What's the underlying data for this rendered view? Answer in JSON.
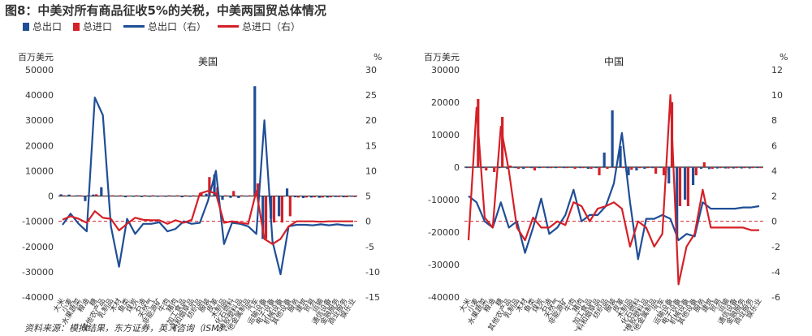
{
  "figure": {
    "title": "图8：中美对所有商品征收5%的关税，中美两国贸总体情况",
    "source": "资料来源：模拟结果，东方证券，英飞咨询（ISM）",
    "legend": [
      {
        "label": "总出口",
        "kind": "bar",
        "color": "#1f4e96"
      },
      {
        "label": "总进口",
        "kind": "bar",
        "color": "#d42027"
      },
      {
        "label": "总出口（右）",
        "kind": "line",
        "color": "#1f4e96"
      },
      {
        "label": "总进口（右）",
        "kind": "line",
        "color": "#d42027"
      }
    ]
  },
  "chart_data": [
    {
      "type": "bar+line",
      "title": "美国",
      "ylabel_left": "百万美元",
      "ylabel_right": "%",
      "ylim_left": [
        -40000,
        50000
      ],
      "yticks_left": [
        -40000,
        -30000,
        -20000,
        -10000,
        0,
        10000,
        20000,
        30000,
        40000,
        50000
      ],
      "ylim_right": [
        -15,
        30
      ],
      "yticks_right": [
        -15,
        -10,
        -5,
        0,
        5,
        10,
        15,
        20,
        25,
        30
      ],
      "categories": [
        "大米",
        "小麦",
        "水果蔬菜",
        "粮油",
        "糖",
        "其他农产品",
        "乳制品",
        "木材",
        "鱼类",
        "煤炭",
        "石油",
        "天然气",
        "非能源矿",
        "牛肉",
        "猪肉",
        "加工食品",
        "饮料和烟草品",
        "纺织品",
        "服装",
        "皮革",
        "木制品",
        "化石燃料",
        "化学橡胶塑料品",
        "其他金属制品",
        "汽车",
        "运输设备",
        "电子设备",
        "机械设备",
        "其他设备",
        "服务",
        "建筑",
        "贸易",
        "运输",
        "通信设备",
        "金融服务",
        "商业服务",
        "娱乐业"
      ],
      "series": [
        {
          "name": "总出口",
          "kind": "bar",
          "values": [
            700,
            600,
            300,
            -2000,
            600,
            3500,
            200,
            -200,
            -500,
            -300,
            -400,
            -300,
            -300,
            -300,
            -200,
            -500,
            -300,
            -200,
            900,
            8500,
            -1500,
            -700,
            -800,
            -200,
            43500,
            -17000,
            -9000,
            -8000,
            3000,
            -500,
            -800,
            -600,
            -700,
            -600,
            -400,
            -500,
            -300
          ]
        },
        {
          "name": "总进口",
          "kind": "bar",
          "values": [
            300,
            200,
            300,
            300,
            700,
            200,
            300,
            300,
            200,
            300,
            300,
            300,
            200,
            300,
            300,
            300,
            300,
            1000,
            7500,
            3500,
            300,
            2000,
            300,
            300,
            5000,
            -17000,
            -10500,
            -10500,
            -8000,
            -600,
            -600,
            -500,
            -600,
            -500,
            -400,
            -500,
            -400
          ]
        },
        {
          "name": "总出口（右）",
          "kind": "line",
          "values": [
            -0.7,
            1.5,
            -0.5,
            -2,
            24.5,
            21,
            -1,
            -9,
            0.5,
            -2.5,
            -0.5,
            -0.5,
            -0.2,
            -2,
            -1.5,
            0,
            -0.5,
            -0.3,
            4,
            10,
            -4.5,
            -0.3,
            -0.5,
            -1,
            -2.5,
            20,
            -4,
            -10.5,
            -1,
            -0.7,
            -0.7,
            -0.8,
            -0.6,
            -0.8,
            -0.6,
            -0.8,
            -0.8
          ]
        },
        {
          "name": "总进口（右）",
          "kind": "line",
          "values": [
            0.3,
            1,
            0.5,
            -0.3,
            2,
            0.7,
            0.5,
            -1.8,
            -0.5,
            0.7,
            0.3,
            0.2,
            0.2,
            -0.5,
            0.2,
            -0.3,
            0.3,
            5.5,
            6,
            5.5,
            -0.3,
            0,
            -0.3,
            -0.5,
            6,
            -3.5,
            -4.5,
            -3.5,
            -1,
            0,
            0,
            0,
            -0.1,
            0,
            0,
            0,
            0
          ]
        }
      ]
    },
    {
      "type": "bar+line",
      "title": "中国",
      "ylabel_left": "百万美元",
      "ylabel_right": "%",
      "ylim_left": [
        -40000,
        30000
      ],
      "yticks_left": [
        -40000,
        -30000,
        -20000,
        -10000,
        0,
        10000,
        20000,
        30000
      ],
      "ylim_right": [
        -6,
        12
      ],
      "yticks_right": [
        -6,
        -4,
        -2,
        0,
        2,
        4,
        6,
        8,
        10,
        12
      ],
      "categories": [
        "大米",
        "小麦",
        "水果蔬菜",
        "粮油",
        "糖",
        "其他农产品",
        "乳制品",
        "木材",
        "鱼类",
        "煤炭",
        "石油",
        "天然气",
        "非能源矿",
        "牛肉",
        "猪肉",
        "加工食品",
        "饮料和烟草品",
        "纺织品",
        "服装",
        "皮革",
        "木制品",
        "化石燃料",
        "化学橡胶塑料品",
        "其他金属制品",
        "汽车",
        "运输设备",
        "电子设备",
        "机械设备",
        "其他设备",
        "服务",
        "建筑",
        "贸易",
        "运输",
        "通信设备",
        "金融服务",
        "商业服务",
        "娱乐业"
      ],
      "series": [
        {
          "name": "总出口",
          "kind": "bar",
          "values": [
            -300,
            -200,
            -300,
            -200,
            -300,
            -500,
            -300,
            -500,
            -300,
            -300,
            -300,
            -300,
            -300,
            -200,
            -300,
            -500,
            -300,
            4500,
            17500,
            6500,
            -2500,
            -1000,
            -500,
            -300,
            -200,
            -5000,
            -22000,
            -10000,
            -5500,
            -500,
            -600,
            -400,
            -400,
            -400,
            -400,
            -400,
            -300
          ]
        },
        {
          "name": "总进口",
          "kind": "bar",
          "values": [
            -300,
            21000,
            -1000,
            -1500,
            15500,
            500,
            -500,
            -200,
            -1000,
            -200,
            -300,
            -200,
            -300,
            -500,
            -300,
            -500,
            -2500,
            -500,
            -300,
            -300,
            -800,
            -300,
            -300,
            -2000,
            -2500,
            20000,
            -12000,
            -12000,
            -2500,
            1500,
            -500,
            -300,
            -400,
            -300,
            -300,
            -300,
            -300
          ]
        },
        {
          "name": "总出口（右）",
          "kind": "line",
          "values": [
            2,
            1.5,
            0,
            -0.5,
            1.5,
            -0.5,
            0,
            -2.5,
            -0.5,
            1.8,
            -1,
            -0.5,
            0.5,
            2.5,
            0,
            0.5,
            0.5,
            1.2,
            3,
            7,
            1.5,
            -3,
            0.2,
            0.2,
            0.5,
            0.2,
            -1.5,
            -1,
            -1.2,
            1.5,
            1,
            1,
            1,
            1,
            1.1,
            1.1,
            1.2
          ]
        },
        {
          "name": "总进口（右）",
          "kind": "line",
          "values": [
            -1.5,
            9,
            0.3,
            -0.5,
            7.5,
            4,
            -0.5,
            -1.5,
            0.3,
            -0.5,
            -0.5,
            0,
            -0.3,
            1.5,
            1.2,
            0,
            1,
            1.2,
            1.5,
            1,
            -2,
            0,
            -0.5,
            -2,
            -1,
            10,
            -5,
            -2,
            -1,
            2.5,
            -0.5,
            -0.5,
            -0.5,
            -0.5,
            -0.5,
            -0.7,
            -0.7
          ]
        }
      ]
    }
  ]
}
